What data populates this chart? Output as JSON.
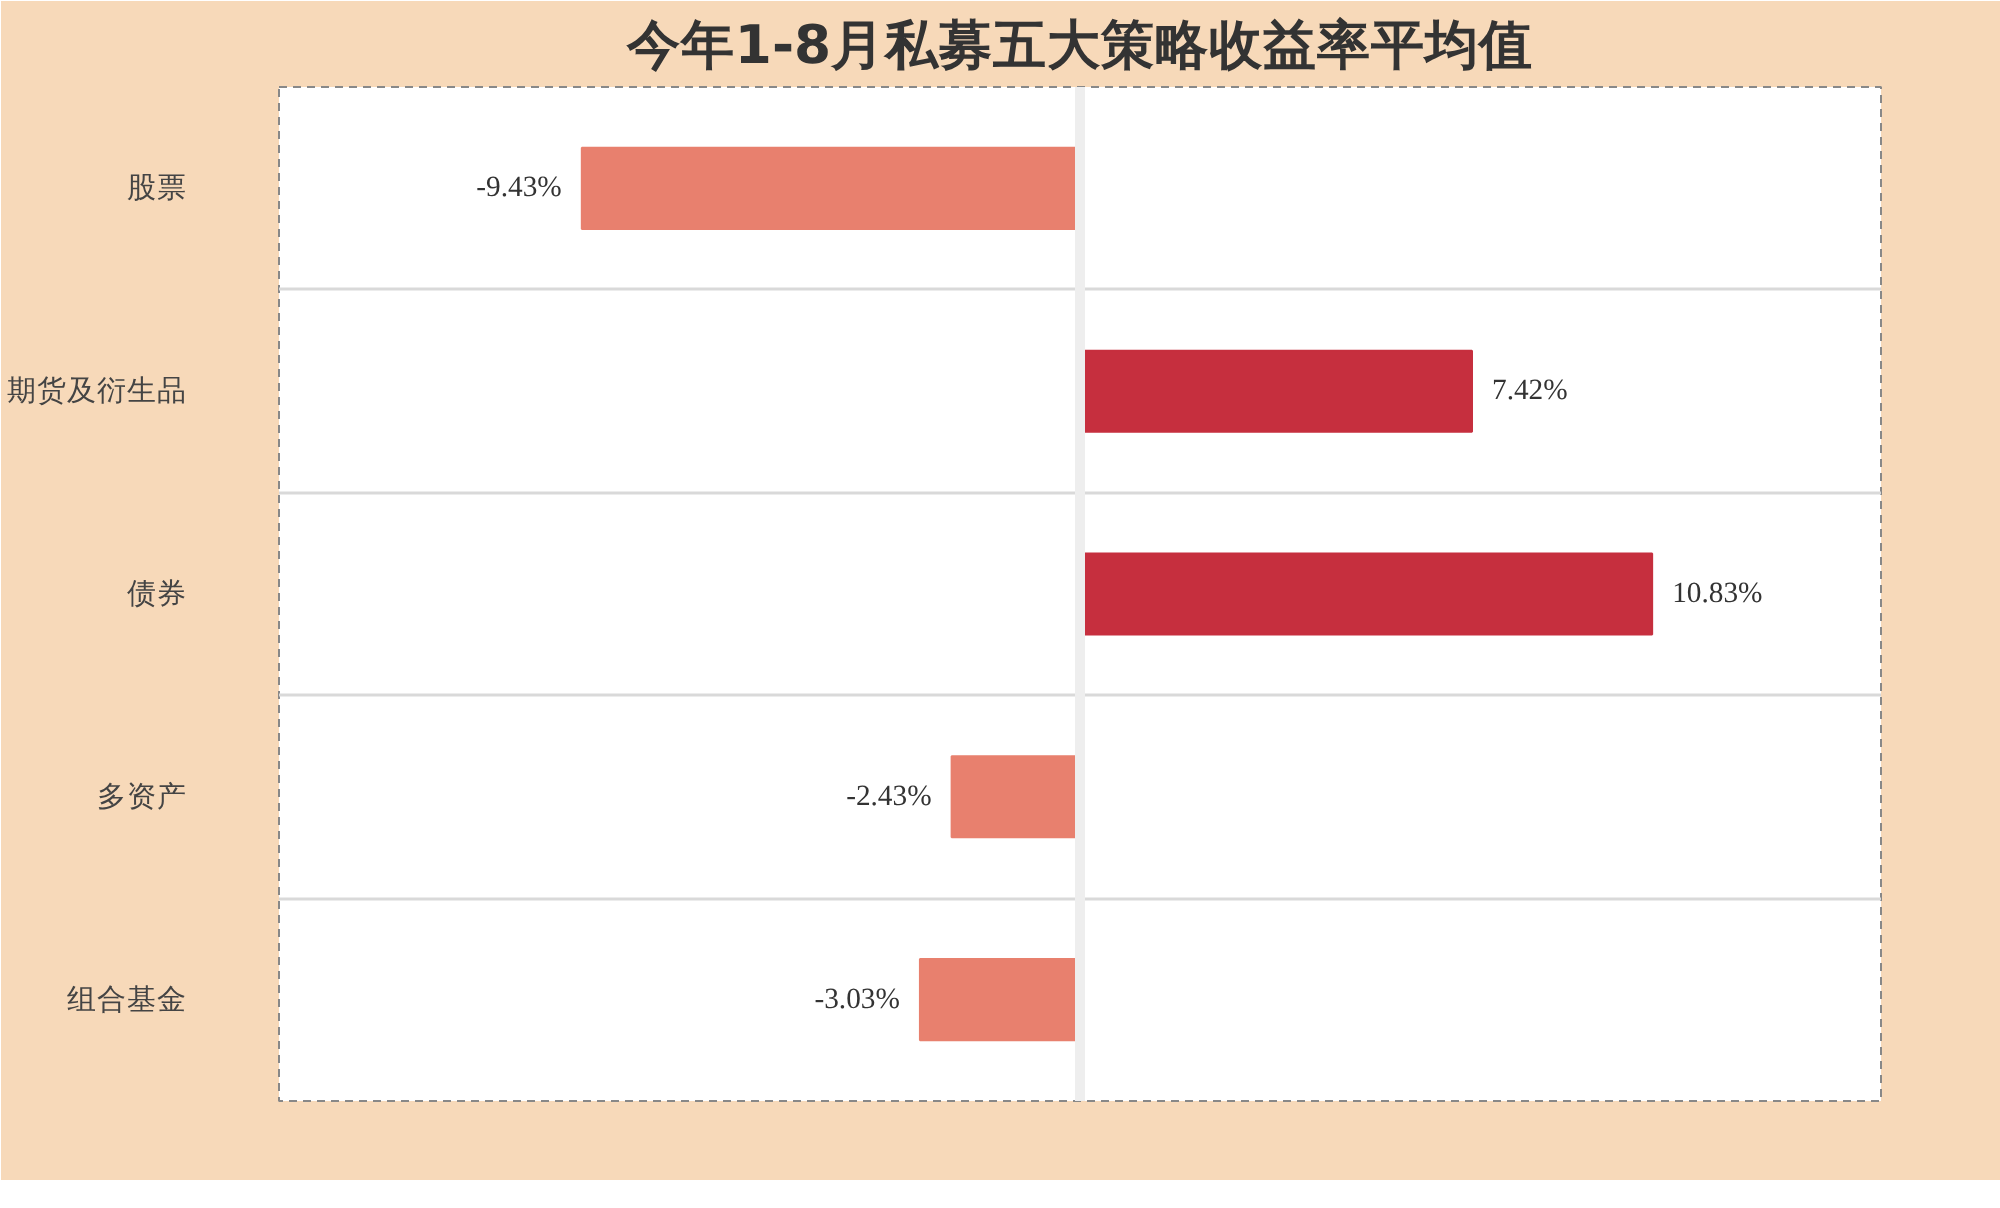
{
  "chart_data": {
    "type": "bar",
    "orientation": "horizontal",
    "title": "今年1-8月私募五大策略收益率平均值",
    "categories": [
      "股票",
      "期货及衍生品",
      "债券",
      "多资产",
      "组合基金"
    ],
    "values": [
      -9.43,
      7.42,
      10.83,
      -2.43,
      -3.03
    ],
    "colors": [
      "#e8806e",
      "#c62f3e",
      "#c62f3e",
      "#e8806e",
      "#e8806e"
    ],
    "value_labels": [
      "-9.43%",
      "7.42%",
      "10.83%",
      "-2.43%",
      "-3.03%"
    ],
    "grid": "y"
  }
}
